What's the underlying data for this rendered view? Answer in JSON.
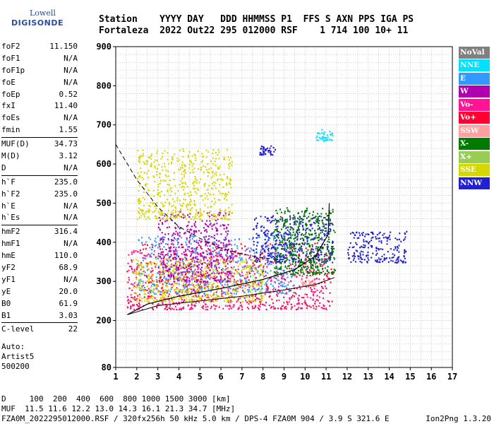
{
  "logo": {
    "line1": "Lowell",
    "line2": "DIGISONDE"
  },
  "header": {
    "row1": "Station    YYYY DAY   DDD HHMMSS P1  FFS S AXN PPS IGA PS",
    "row2": "Fortaleza  2022 Out22 295 012000 RSF    1 714 100 10+ 11"
  },
  "params": {
    "group1": [
      {
        "label": "foF2",
        "value": "11.150"
      },
      {
        "label": "foF1",
        "value": "N/A"
      },
      {
        "label": "foF1p",
        "value": "N/A"
      },
      {
        "label": "foE",
        "value": "N/A"
      },
      {
        "label": "foEp",
        "value": "0.52"
      },
      {
        "label": "fxI",
        "value": "11.40"
      },
      {
        "label": "foEs",
        "value": "N/A"
      },
      {
        "label": "fmin",
        "value": "1.55"
      }
    ],
    "group2": [
      {
        "label": "MUF(D)",
        "value": "34.73"
      },
      {
        "label": "M(D)",
        "value": "3.12"
      },
      {
        "label": "D",
        "value": "N/A"
      }
    ],
    "group3": [
      {
        "label": "h`F",
        "value": "235.0"
      },
      {
        "label": "h`F2",
        "value": "235.0"
      },
      {
        "label": "h`E",
        "value": "N/A"
      },
      {
        "label": "h`Es",
        "value": "N/A"
      }
    ],
    "group4": [
      {
        "label": "hmF2",
        "value": "316.4"
      },
      {
        "label": "hmF1",
        "value": "N/A"
      },
      {
        "label": "hmE",
        "value": "110.0"
      },
      {
        "label": "yF2",
        "value": "68.9"
      },
      {
        "label": "yF1",
        "value": "N/A"
      },
      {
        "label": "yE",
        "value": "20.0"
      },
      {
        "label": "B0",
        "value": "61.9"
      },
      {
        "label": "B1",
        "value": "3.03"
      }
    ],
    "group5": [
      {
        "label": "C-level",
        "value": "22"
      }
    ]
  },
  "auto": {
    "line1": "Auto:",
    "line2": "Artist5",
    "line3": "500200"
  },
  "footer": {
    "row1": "D     100  200  400  600  800 1000 1500 3000 [km]",
    "row2": "MUF  11.5 11.6 12.2 13.0 14.3 16.1 21.3 34.7 [MHz]",
    "row3": "FZA0M_2022295012000.RSF / 320fx256h 50 kHz 5.0 km / DPS-4 FZA0M 904 / 3.9 S 321.6 E"
  },
  "version": "Ion2Png 1.3.20",
  "legend": [
    {
      "label": "NoVal",
      "color": "#808080"
    },
    {
      "label": "NNE",
      "color": "#00e0ff"
    },
    {
      "label": "E",
      "color": "#3399ff"
    },
    {
      "label": "W",
      "color": "#b000b0"
    },
    {
      "label": "Vo-",
      "color": "#ff1493"
    },
    {
      "label": "Vo+",
      "color": "#ff0033"
    },
    {
      "label": "SSW",
      "color": "#ffa0a0"
    },
    {
      "label": "X-",
      "color": "#007a00"
    },
    {
      "label": "X+",
      "color": "#99cc55"
    },
    {
      "label": "SSE",
      "color": "#d6d600"
    },
    {
      "label": "NNW",
      "color": "#2020d0"
    }
  ],
  "chart_data": {
    "type": "scatter",
    "title": "",
    "xlabel": "",
    "ylabel": "",
    "xlim": [
      1,
      17
    ],
    "ylim": [
      80,
      900
    ],
    "x_ticks": [
      1,
      2,
      3,
      4,
      5,
      6,
      7,
      8,
      9,
      10,
      11,
      12,
      13,
      14,
      15,
      16,
      17
    ],
    "y_ticks": [
      80,
      200,
      300,
      400,
      500,
      600,
      700,
      800,
      900
    ],
    "grid": true,
    "legend_position": "right",
    "clusters": [
      {
        "mode": "Vo+",
        "color": "#ff0033",
        "x_range": [
          1.5,
          11.3
        ],
        "y_range": [
          230,
          400
        ]
      },
      {
        "mode": "Vo-",
        "color": "#ff1493",
        "x_range": [
          1.5,
          11.0
        ],
        "y_range": [
          230,
          380
        ]
      },
      {
        "mode": "E",
        "color": "#3399ff",
        "x_range": [
          2.0,
          9.5
        ],
        "y_range": [
          270,
          420
        ]
      },
      {
        "mode": "W",
        "color": "#b000b0",
        "x_range": [
          3.0,
          6.5
        ],
        "y_range": [
          300,
          480
        ]
      },
      {
        "mode": "SSE",
        "color": "#d6d600",
        "x_range": [
          1.8,
          8.0
        ],
        "y_range": [
          250,
          360
        ]
      },
      {
        "mode": "SSE",
        "color": "#d6d600",
        "x_range": [
          2.0,
          6.5
        ],
        "y_range": [
          460,
          640
        ]
      },
      {
        "mode": "NNW",
        "color": "#2020d0",
        "x_range": [
          7.5,
          11.3
        ],
        "y_range": [
          350,
          470
        ]
      },
      {
        "mode": "NNW",
        "color": "#2020d0",
        "x_range": [
          7.8,
          8.6
        ],
        "y_range": [
          625,
          650
        ]
      },
      {
        "mode": "NNW",
        "color": "#2020d0",
        "x_range": [
          12.0,
          14.8
        ],
        "y_range": [
          350,
          430
        ]
      },
      {
        "mode": "NNE",
        "color": "#00e0ff",
        "x_range": [
          10.5,
          11.3
        ],
        "y_range": [
          660,
          690
        ]
      },
      {
        "mode": "X-",
        "color": "#007a00",
        "x_range": [
          8.5,
          11.4
        ],
        "y_range": [
          320,
          490
        ]
      },
      {
        "mode": "SSW",
        "color": "#ffa0a0",
        "x_range": [
          9.8,
          10.5
        ],
        "y_range": [
          290,
          305
        ]
      }
    ],
    "profile_curve": {
      "x": [
        1.55,
        2.5,
        4,
        6,
        8,
        9.5,
        10.5,
        11.1,
        11.15
      ],
      "y": [
        215,
        242,
        262,
        282,
        305,
        330,
        365,
        420,
        500
      ]
    },
    "theoretical_curve": {
      "x": [
        1.55,
        3,
        5,
        7,
        9,
        10.5,
        11.4
      ],
      "y": [
        215,
        238,
        250,
        262,
        278,
        292,
        310
      ]
    },
    "dashed_curve": {
      "x": [
        1.0,
        2.0,
        3.0,
        4.0,
        5.0,
        6.0,
        7.0,
        8.0,
        9.0
      ],
      "y": [
        650,
        560,
        490,
        440,
        410,
        385,
        370,
        360,
        355
      ]
    }
  }
}
